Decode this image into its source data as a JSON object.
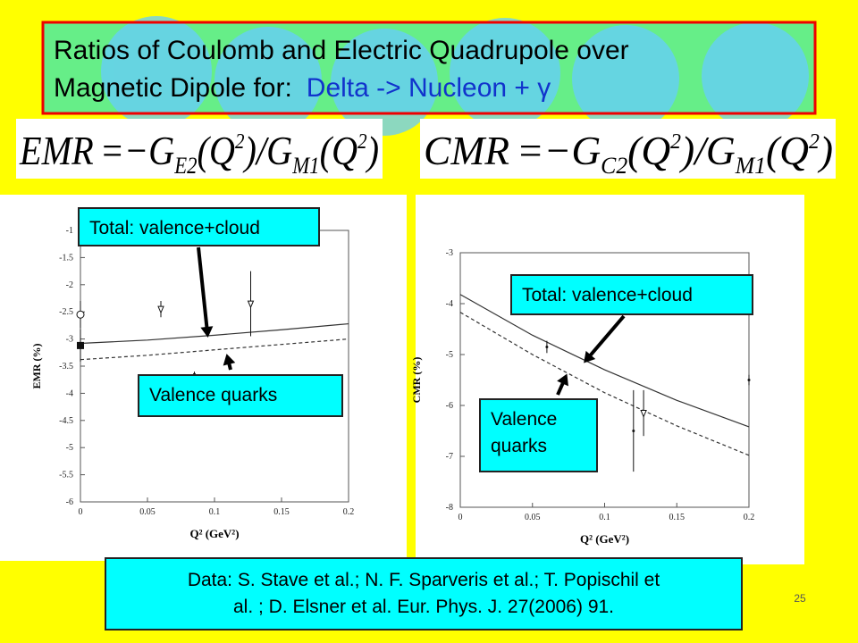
{
  "title": {
    "line1": "Ratios of Coulomb and Electric Quadrupole over",
    "line2_black": "Magnetic Dipole for:",
    "line2_blue": "Delta -> Nucleon + γ"
  },
  "formulas": [
    {
      "parts": [
        "EMR",
        "=",
        "−G",
        "E2",
        "(Q",
        "2",
        ")/G",
        "M1",
        "(Q",
        "2",
        ")"
      ]
    },
    {
      "parts": [
        "CMR",
        "=",
        "−G",
        "C2",
        "(Q",
        "2",
        ")/G",
        "M1",
        "(Q",
        "2",
        ")"
      ]
    }
  ],
  "chart_data": [
    {
      "type": "line",
      "ylabel": "EMR (%)",
      "xlabel": "Q² (GeV²)",
      "xlim": [
        0,
        0.2
      ],
      "ylim": [
        -6,
        -1
      ],
      "xticks": [
        0,
        0.05,
        0.1,
        0.15,
        0.2
      ],
      "yticks": [
        -1,
        -1.5,
        -2,
        -2.5,
        -3,
        -3.5,
        -4,
        -4.5,
        -5,
        -5.5,
        -6
      ],
      "curves": [
        {
          "x": [
            0,
            0.05,
            0.1,
            0.15,
            0.2
          ],
          "values": [
            -3.08,
            -3.02,
            -2.93,
            -2.83,
            -2.72
          ],
          "dash": "solid",
          "color": "#333333"
        },
        {
          "x": [
            0,
            0.05,
            0.1,
            0.15,
            0.2
          ],
          "values": [
            -3.38,
            -3.3,
            -3.2,
            -3.1,
            -3.0
          ],
          "dash": "dashed",
          "color": "#333333"
        }
      ],
      "points": {
        "x": [
          0,
          0,
          0.06,
          0.127,
          0.085
        ],
        "values": [
          -3.12,
          -2.55,
          -2.45,
          -2.35,
          -3.65
        ],
        "errors": [
          0.3,
          0.25,
          0.15,
          0.6,
          0.05
        ],
        "markers": [
          "square",
          "circle",
          "triangle",
          "triangle",
          "dot"
        ]
      },
      "annotations": [
        {
          "lines": [
            "Total: valence+cloud"
          ]
        },
        {
          "lines": [
            "Valence quarks"
          ]
        }
      ]
    },
    {
      "type": "line",
      "ylabel": "CMR (%)",
      "xlabel": "Q² (GeV²)",
      "xlim": [
        0,
        0.2
      ],
      "ylim": [
        -8,
        -3
      ],
      "xticks": [
        0,
        0.05,
        0.1,
        0.15,
        0.2
      ],
      "yticks": [
        -3,
        -4,
        -5,
        -6,
        -7,
        -8
      ],
      "curves": [
        {
          "x": [
            0,
            0.05,
            0.1,
            0.15,
            0.2
          ],
          "values": [
            -3.82,
            -4.62,
            -5.3,
            -5.9,
            -6.42
          ],
          "dash": "solid",
          "color": "#333333"
        },
        {
          "x": [
            0,
            0.05,
            0.1,
            0.15,
            0.2
          ],
          "values": [
            -4.17,
            -5.0,
            -5.75,
            -6.4,
            -6.98
          ],
          "dash": "dashed",
          "color": "#333333"
        }
      ],
      "points": {
        "x": [
          0.06,
          0.12,
          0.127,
          0.2
        ],
        "values": [
          -4.85,
          -6.5,
          -6.15,
          -5.5
        ],
        "errors": [
          0.12,
          0.8,
          0.45,
          0.1
        ],
        "markers": [
          "dot",
          "dot",
          "triangle",
          "dot"
        ]
      },
      "annotations": [
        {
          "lines": [
            "Total: valence+cloud"
          ]
        },
        {
          "lines": [
            "Valence",
            "quarks"
          ]
        }
      ]
    }
  ],
  "footer": {
    "lines": [
      "Data: S. Stave et al.; N. F. Sparveris et al.; T. Popischil et",
      "al. ; D. Elsner et al. Eur. Phys. J. 27(2006) 91."
    ]
  },
  "page_number": "25"
}
